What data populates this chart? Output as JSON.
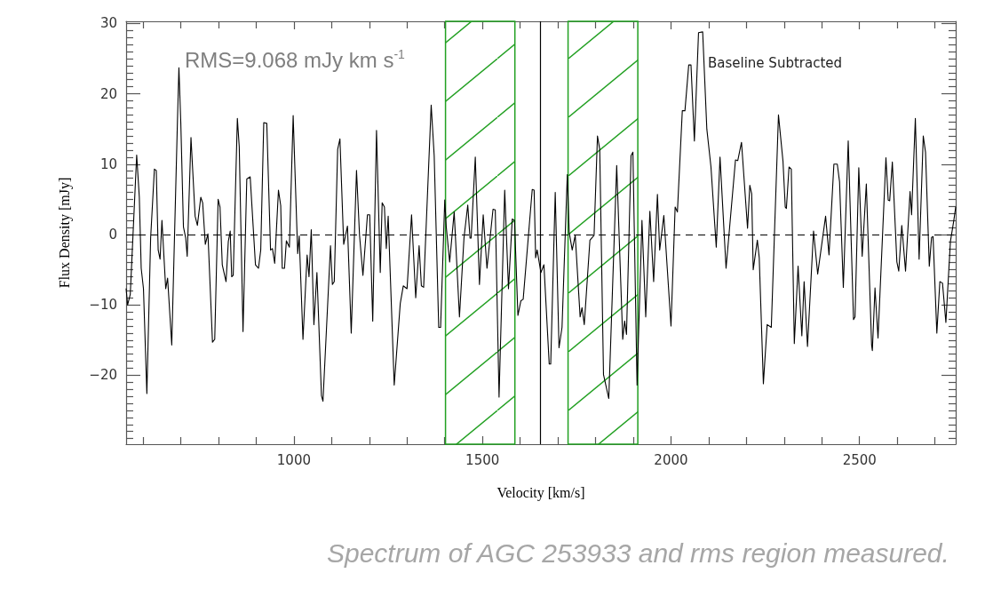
{
  "chart_data": {
    "type": "line",
    "xlabel": "Velocity [km/s]",
    "ylabel": "Flux Density [mJy]",
    "annotations": [
      "RMS=9.068 mJy km s$^{-1}$",
      "Baseline Subtracted",
      "Spectrum of AGC 253933 and rms region measured."
    ],
    "xlim": [
      555,
      2755
    ],
    "ylim": [
      -29.8,
      30.3
    ],
    "xticks": [
      {
        "value": 600,
        "label": null
      },
      {
        "value": 700,
        "label": null
      },
      {
        "value": 800,
        "label": null
      },
      {
        "value": 900,
        "label": null
      },
      1000,
      {
        "value": 1100,
        "label": null
      },
      {
        "value": 1200,
        "label": null
      },
      {
        "value": 1300,
        "label": null
      },
      {
        "value": 1400,
        "label": null
      },
      1500,
      {
        "value": 1600,
        "label": null
      },
      {
        "value": 1700,
        "label": null
      },
      {
        "value": 1800,
        "label": null
      },
      {
        "value": 1900,
        "label": null
      },
      2000,
      {
        "value": 2100,
        "label": null
      },
      {
        "value": 2200,
        "label": null
      },
      {
        "value": 2300,
        "label": null
      },
      {
        "value": 2400,
        "label": null
      },
      2500,
      {
        "value": 2600,
        "label": null
      },
      {
        "value": 2700,
        "label": null
      }
    ],
    "yticks": [
      {
        "value": -29,
        "label": null
      },
      {
        "value": -28,
        "label": null
      },
      {
        "value": -27,
        "label": null
      },
      {
        "value": -26,
        "label": null
      },
      {
        "value": -25,
        "label": null
      },
      {
        "value": -24,
        "label": null
      },
      {
        "value": -23,
        "label": null
      },
      {
        "value": -22,
        "label": null
      },
      {
        "value": -21,
        "label": null
      },
      {
        "value": -20,
        "label": "−20"
      },
      {
        "value": -19,
        "label": null
      },
      {
        "value": -18,
        "label": null
      },
      {
        "value": -17,
        "label": null
      },
      {
        "value": -16,
        "label": null
      },
      {
        "value": -15,
        "label": null
      },
      {
        "value": -14,
        "label": null
      },
      {
        "value": -13,
        "label": null
      },
      {
        "value": -12,
        "label": null
      },
      {
        "value": -11,
        "label": null
      },
      {
        "value": -10,
        "label": "−10"
      },
      {
        "value": -9,
        "label": null
      },
      {
        "value": -8,
        "label": null
      },
      {
        "value": -7,
        "label": null
      },
      {
        "value": -6,
        "label": null
      },
      {
        "value": -5,
        "label": null
      },
      {
        "value": -4,
        "label": null
      },
      {
        "value": -3,
        "label": null
      },
      {
        "value": -2,
        "label": null
      },
      {
        "value": -1,
        "label": null
      },
      0,
      {
        "value": 1,
        "label": null
      },
      {
        "value": 2,
        "label": null
      },
      {
        "value": 3,
        "label": null
      },
      {
        "value": 4,
        "label": null
      },
      {
        "value": 5,
        "label": null
      },
      {
        "value": 6,
        "label": null
      },
      {
        "value": 7,
        "label": null
      },
      {
        "value": 8,
        "label": null
      },
      {
        "value": 9,
        "label": null
      },
      10,
      {
        "value": 11,
        "label": null
      },
      {
        "value": 12,
        "label": null
      },
      {
        "value": 13,
        "label": null
      },
      {
        "value": 14,
        "label": null
      },
      {
        "value": 15,
        "label": null
      },
      {
        "value": 16,
        "label": null
      },
      {
        "value": 17,
        "label": null
      },
      {
        "value": 18,
        "label": null
      },
      {
        "value": 19,
        "label": null
      },
      20,
      {
        "value": 21,
        "label": null
      },
      {
        "value": 22,
        "label": null
      },
      {
        "value": 23,
        "label": null
      },
      {
        "value": 24,
        "label": null
      },
      {
        "value": 25,
        "label": null
      },
      {
        "value": 26,
        "label": null
      },
      {
        "value": 27,
        "label": null
      },
      {
        "value": 28,
        "label": null
      },
      {
        "value": 29,
        "label": null
      },
      30
    ],
    "grid": false,
    "marker": "none",
    "ref_lines": [
      {
        "axis": "x",
        "value": 1654,
        "color": "#000000"
      },
      {
        "axis": "y",
        "value": 0,
        "color": "#000000",
        "line_style": "dashed"
      }
    ],
    "bands": [
      {
        "axis": "x",
        "from": 1402,
        "to": 1586,
        "color": "#22a022"
      },
      {
        "axis": "x",
        "from": 1727,
        "to": 1912,
        "color": "#22a022"
      }
    ],
    "x": [
      555,
      559,
      566,
      583,
      590,
      595,
      601,
      610,
      620,
      630,
      635,
      640,
      645,
      650,
      660,
      665,
      676,
      691,
      695,
      700,
      707,
      713,
      717,
      727,
      738,
      744,
      753,
      758,
      765,
      772,
      784,
      790,
      799,
      804,
      810,
      820,
      826,
      831,
      835,
      839,
      850,
      855,
      865,
      875,
      884,
      898,
      906,
      912,
      920,
      928,
      938,
      943,
      949,
      959,
      965,
      969,
      975,
      980,
      988,
      998,
      1010,
      1014,
      1024,
      1035,
      1040,
      1046,
      1053,
      1061,
      1073,
      1077,
      1085,
      1097,
      1102,
      1107,
      1116,
      1122,
      1132,
      1142,
      1152,
      1166,
      1174,
      1183,
      1195,
      1201,
      1209,
      1219,
      1229,
      1234,
      1240,
      1245,
      1250,
      1266,
      1282,
      1290,
      1300,
      1312,
      1323,
      1332,
      1338,
      1344,
      1364,
      1372,
      1384,
      1389,
      1400,
      1404,
      1413,
      1425,
      1439,
      1451,
      1461,
      1467,
      1470,
      1481,
      1492,
      1502,
      1512,
      1528,
      1534,
      1544,
      1559,
      1569,
      1579,
      1585,
      1594,
      1602,
      1608,
      1632,
      1637,
      1641,
      1645,
      1655,
      1663,
      1677,
      1681,
      1693,
      1703,
      1711,
      1725,
      1730,
      1738,
      1746,
      1759,
      1764,
      1770,
      1785,
      1796,
      1805,
      1811,
      1821,
      1835,
      1856,
      1872,
      1877,
      1882,
      1894,
      1899,
      1910,
      1923,
      1933,
      1944,
      1954,
      1964,
      1970,
      1981,
      2000,
      2011,
      2017,
      2030,
      2037,
      2047,
      2053,
      2062,
      2073,
      2084,
      2095,
      2106,
      2120,
      2130,
      2146,
      2171,
      2177,
      2187,
      2203,
      2209,
      2214,
      2218,
      2229,
      2234,
      2245,
      2255,
      2266,
      2285,
      2297,
      2303,
      2306,
      2313,
      2319,
      2327,
      2337,
      2347,
      2353,
      2362,
      2378,
      2389,
      2410,
      2419,
      2432,
      2441,
      2447,
      2457,
      2470,
      2484,
      2488,
      2498,
      2507,
      2518,
      2532,
      2534,
      2541,
      2549,
      2570,
      2576,
      2580,
      2587,
      2599,
      2604,
      2612,
      2622,
      2634,
      2638,
      2648,
      2658,
      2669,
      2675,
      2685,
      2691,
      2695,
      2705,
      2713,
      2720,
      2729,
      2741,
      2750,
      2755
    ],
    "values": [
      -7.7,
      -10,
      -8.5,
      11.3,
      5.3,
      -4.8,
      -7.7,
      -22.6,
      -0.5,
      9.3,
      9.1,
      -2.2,
      -3.5,
      2,
      -7.7,
      -6.2,
      -15.7,
      15.9,
      23.7,
      15.9,
      1.1,
      -0.5,
      -3.1,
      13.8,
      2.6,
      1.3,
      5.3,
      4.5,
      -1.4,
      0.1,
      -15.3,
      -14.9,
      5,
      3.9,
      -4.3,
      -6.7,
      -1,
      0.5,
      -6,
      -5.8,
      16.5,
      12.5,
      -13.8,
      7.9,
      8.2,
      -4.3,
      -4.8,
      -2.2,
      15.9,
      15.8,
      -2.2,
      -2,
      -4.1,
      6.3,
      4.1,
      -4.8,
      -4.8,
      -0.9,
      -1.8,
      16.9,
      -2.7,
      -0.2,
      -14.9,
      -2.9,
      -6,
      0.7,
      -12.8,
      -5.4,
      -22.9,
      -23.7,
      -14.9,
      -1.6,
      -7.1,
      -6.7,
      12.1,
      13.6,
      -1.4,
      1.2,
      -14,
      9.1,
      -0.1,
      -5.8,
      2.8,
      2.8,
      -12.3,
      14.8,
      -5.4,
      4.5,
      3.9,
      -2,
      2.6,
      -21.4,
      -9.8,
      -7.3,
      -7.7,
      2.8,
      -9,
      -1.6,
      -7.3,
      -7.5,
      18.4,
      11.2,
      -13.2,
      -13.2,
      4.9,
      1.1,
      -3.9,
      3.2,
      -11.7,
      -0.5,
      4.2,
      -0.5,
      -0.5,
      11,
      -7.1,
      2.8,
      -4.8,
      3.6,
      3.5,
      -23.1,
      6.3,
      -7.7,
      2.2,
      2,
      -11.5,
      -9.4,
      -9.2,
      6.4,
      6.3,
      -3.3,
      -2.2,
      -5.4,
      -4.3,
      -18.4,
      -18.4,
      6,
      -16.1,
      -13.2,
      8.5,
      0.3,
      -2.2,
      -0.1,
      -11.7,
      -10.4,
      -12.8,
      -0.8,
      -0.1,
      14,
      12.1,
      -19.9,
      -23.3,
      9.8,
      -14.9,
      -12.3,
      -14.2,
      11.2,
      11.7,
      -21.4,
      2,
      -11.7,
      3.3,
      -6.7,
      5.7,
      -2.2,
      2.7,
      -13,
      3.9,
      3.2,
      17.6,
      17.6,
      24.1,
      24.1,
      13.3,
      28.7,
      28.8,
      15,
      9.6,
      -1.8,
      11,
      -4.8,
      10.6,
      10.5,
      13.1,
      0.9,
      7,
      5.8,
      -5,
      -0.8,
      -3.3,
      -21.2,
      -12.8,
      -13.2,
      17,
      10.4,
      3.9,
      3.7,
      9.6,
      9.3,
      -15.5,
      -4.5,
      -14.4,
      -6.7,
      -15.9,
      0.5,
      -5.6,
      2.6,
      -2.9,
      10,
      10,
      7.5,
      -7.5,
      13.3,
      -12.1,
      -11.7,
      9.5,
      -3.1,
      7.2,
      -15.7,
      -16.5,
      -7.6,
      -14.7,
      10.9,
      4.9,
      4.8,
      10.3,
      -3.9,
      -5.2,
      1.3,
      -5.2,
      6.1,
      2.8,
      16.5,
      -3.5,
      14,
      11.7,
      -4.5,
      -0.4,
      -0.3,
      -14,
      -6.7,
      -6.9,
      -12.5,
      -1,
      2,
      3.9
    ],
    "color": "#000000"
  }
}
